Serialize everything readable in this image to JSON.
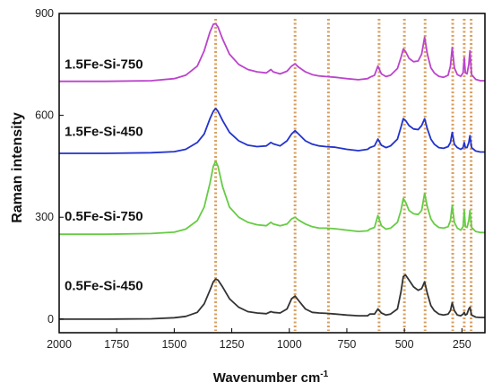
{
  "chart_data": {
    "type": "line",
    "xlabel": "Wavenumber cm",
    "xlabel_sup": "-1",
    "ylabel": "Raman intensity",
    "xlim": [
      2000,
      150
    ],
    "ylim": [
      -40,
      900
    ],
    "x_reversed": true,
    "x_ticks": [
      2000,
      1750,
      1500,
      1250,
      1000,
      750,
      500,
      250
    ],
    "y_ticks": [
      0,
      300,
      600,
      900
    ],
    "grid": false,
    "reference_lines": {
      "color": "#d9a060",
      "style": "dotted",
      "x": [
        1320,
        975,
        830,
        610,
        500,
        410,
        290,
        240,
        210
      ]
    },
    "series": [
      {
        "name": "0.5Fe-Si-450",
        "color": "#333333",
        "label_y": 85,
        "points": [
          [
            2000,
            0
          ],
          [
            1800,
            0
          ],
          [
            1600,
            1
          ],
          [
            1500,
            4
          ],
          [
            1450,
            8
          ],
          [
            1400,
            20
          ],
          [
            1370,
            45
          ],
          [
            1345,
            85
          ],
          [
            1330,
            110
          ],
          [
            1320,
            118
          ],
          [
            1310,
            115
          ],
          [
            1290,
            95
          ],
          [
            1260,
            60
          ],
          [
            1220,
            35
          ],
          [
            1180,
            22
          ],
          [
            1140,
            18
          ],
          [
            1100,
            16
          ],
          [
            1080,
            22
          ],
          [
            1070,
            20
          ],
          [
            1040,
            18
          ],
          [
            1010,
            30
          ],
          [
            990,
            60
          ],
          [
            975,
            68
          ],
          [
            960,
            55
          ],
          [
            930,
            30
          ],
          [
            900,
            20
          ],
          [
            870,
            18
          ],
          [
            840,
            17
          ],
          [
            800,
            15
          ],
          [
            750,
            12
          ],
          [
            700,
            10
          ],
          [
            660,
            10
          ],
          [
            650,
            15
          ],
          [
            630,
            15
          ],
          [
            615,
            30
          ],
          [
            600,
            18
          ],
          [
            580,
            12
          ],
          [
            560,
            15
          ],
          [
            530,
            30
          ],
          [
            515,
            80
          ],
          [
            505,
            125
          ],
          [
            495,
            130
          ],
          [
            480,
            115
          ],
          [
            460,
            95
          ],
          [
            440,
            85
          ],
          [
            425,
            90
          ],
          [
            412,
            110
          ],
          [
            400,
            75
          ],
          [
            385,
            40
          ],
          [
            370,
            25
          ],
          [
            350,
            15
          ],
          [
            330,
            12
          ],
          [
            310,
            15
          ],
          [
            300,
            25
          ],
          [
            292,
            48
          ],
          [
            283,
            25
          ],
          [
            270,
            12
          ],
          [
            255,
            10
          ],
          [
            245,
            15
          ],
          [
            240,
            20
          ],
          [
            235,
            12
          ],
          [
            228,
            15
          ],
          [
            220,
            30
          ],
          [
            215,
            35
          ],
          [
            208,
            12
          ],
          [
            190,
            6
          ],
          [
            170,
            5
          ],
          [
            150,
            5
          ]
        ]
      },
      {
        "name": "0.5Fe-Si-750",
        "color": "#66cc44",
        "label_y": 290,
        "points": [
          [
            2000,
            250
          ],
          [
            1800,
            250
          ],
          [
            1600,
            252
          ],
          [
            1500,
            256
          ],
          [
            1450,
            265
          ],
          [
            1400,
            290
          ],
          [
            1370,
            330
          ],
          [
            1345,
            400
          ],
          [
            1330,
            450
          ],
          [
            1320,
            465
          ],
          [
            1310,
            450
          ],
          [
            1290,
            390
          ],
          [
            1260,
            330
          ],
          [
            1220,
            300
          ],
          [
            1180,
            285
          ],
          [
            1140,
            278
          ],
          [
            1100,
            275
          ],
          [
            1080,
            285
          ],
          [
            1070,
            280
          ],
          [
            1040,
            275
          ],
          [
            1010,
            280
          ],
          [
            990,
            295
          ],
          [
            975,
            300
          ],
          [
            960,
            292
          ],
          [
            930,
            280
          ],
          [
            900,
            272
          ],
          [
            870,
            268
          ],
          [
            840,
            268
          ],
          [
            800,
            266
          ],
          [
            750,
            262
          ],
          [
            700,
            258
          ],
          [
            660,
            260
          ],
          [
            650,
            265
          ],
          [
            630,
            270
          ],
          [
            615,
            305
          ],
          [
            600,
            275
          ],
          [
            580,
            265
          ],
          [
            560,
            268
          ],
          [
            530,
            285
          ],
          [
            515,
            320
          ],
          [
            505,
            355
          ],
          [
            495,
            345
          ],
          [
            480,
            320
          ],
          [
            460,
            310
          ],
          [
            440,
            308
          ],
          [
            425,
            320
          ],
          [
            412,
            370
          ],
          [
            400,
            330
          ],
          [
            385,
            295
          ],
          [
            370,
            280
          ],
          [
            350,
            270
          ],
          [
            330,
            268
          ],
          [
            310,
            272
          ],
          [
            300,
            290
          ],
          [
            292,
            335
          ],
          [
            283,
            285
          ],
          [
            270,
            268
          ],
          [
            255,
            262
          ],
          [
            245,
            272
          ],
          [
            240,
            320
          ],
          [
            235,
            272
          ],
          [
            228,
            270
          ],
          [
            220,
            290
          ],
          [
            215,
            320
          ],
          [
            208,
            270
          ],
          [
            190,
            258
          ],
          [
            170,
            255
          ],
          [
            150,
            255
          ]
        ]
      },
      {
        "name": "1.5Fe-Si-450",
        "color": "#2233cc",
        "label_y": 540,
        "points": [
          [
            2000,
            488
          ],
          [
            1800,
            488
          ],
          [
            1600,
            490
          ],
          [
            1500,
            493
          ],
          [
            1450,
            500
          ],
          [
            1400,
            520
          ],
          [
            1370,
            545
          ],
          [
            1345,
            590
          ],
          [
            1330,
            612
          ],
          [
            1320,
            620
          ],
          [
            1310,
            612
          ],
          [
            1290,
            585
          ],
          [
            1260,
            550
          ],
          [
            1220,
            525
          ],
          [
            1180,
            512
          ],
          [
            1140,
            508
          ],
          [
            1100,
            510
          ],
          [
            1080,
            520
          ],
          [
            1070,
            516
          ],
          [
            1040,
            510
          ],
          [
            1010,
            525
          ],
          [
            990,
            545
          ],
          [
            975,
            555
          ],
          [
            960,
            545
          ],
          [
            930,
            525
          ],
          [
            900,
            515
          ],
          [
            870,
            510
          ],
          [
            840,
            508
          ],
          [
            800,
            506
          ],
          [
            750,
            500
          ],
          [
            700,
            496
          ],
          [
            660,
            500
          ],
          [
            650,
            505
          ],
          [
            630,
            510
          ],
          [
            615,
            530
          ],
          [
            600,
            512
          ],
          [
            580,
            505
          ],
          [
            560,
            510
          ],
          [
            530,
            530
          ],
          [
            515,
            565
          ],
          [
            505,
            590
          ],
          [
            495,
            585
          ],
          [
            480,
            570
          ],
          [
            460,
            560
          ],
          [
            440,
            558
          ],
          [
            425,
            570
          ],
          [
            412,
            590
          ],
          [
            400,
            560
          ],
          [
            385,
            530
          ],
          [
            370,
            515
          ],
          [
            350,
            505
          ],
          [
            330,
            503
          ],
          [
            310,
            508
          ],
          [
            300,
            520
          ],
          [
            292,
            550
          ],
          [
            283,
            515
          ],
          [
            270,
            505
          ],
          [
            255,
            500
          ],
          [
            245,
            505
          ],
          [
            240,
            520
          ],
          [
            235,
            505
          ],
          [
            228,
            505
          ],
          [
            220,
            520
          ],
          [
            215,
            540
          ],
          [
            208,
            505
          ],
          [
            190,
            495
          ],
          [
            170,
            492
          ],
          [
            150,
            492
          ]
        ]
      },
      {
        "name": "1.5Fe-Si-750",
        "color": "#bb44cc",
        "label_y": 738,
        "points": [
          [
            2000,
            700
          ],
          [
            1800,
            700
          ],
          [
            1600,
            702
          ],
          [
            1500,
            708
          ],
          [
            1450,
            718
          ],
          [
            1400,
            745
          ],
          [
            1370,
            790
          ],
          [
            1345,
            845
          ],
          [
            1330,
            868
          ],
          [
            1320,
            870
          ],
          [
            1310,
            860
          ],
          [
            1290,
            825
          ],
          [
            1260,
            780
          ],
          [
            1220,
            750
          ],
          [
            1180,
            735
          ],
          [
            1140,
            728
          ],
          [
            1100,
            725
          ],
          [
            1080,
            735
          ],
          [
            1070,
            728
          ],
          [
            1040,
            722
          ],
          [
            1010,
            730
          ],
          [
            990,
            745
          ],
          [
            975,
            752
          ],
          [
            960,
            742
          ],
          [
            930,
            728
          ],
          [
            900,
            720
          ],
          [
            870,
            716
          ],
          [
            840,
            714
          ],
          [
            800,
            712
          ],
          [
            750,
            708
          ],
          [
            700,
            705
          ],
          [
            660,
            708
          ],
          [
            650,
            712
          ],
          [
            630,
            718
          ],
          [
            615,
            745
          ],
          [
            600,
            722
          ],
          [
            580,
            714
          ],
          [
            560,
            718
          ],
          [
            530,
            738
          ],
          [
            515,
            770
          ],
          [
            505,
            795
          ],
          [
            495,
            788
          ],
          [
            480,
            768
          ],
          [
            460,
            758
          ],
          [
            440,
            760
          ],
          [
            425,
            780
          ],
          [
            412,
            830
          ],
          [
            400,
            780
          ],
          [
            385,
            740
          ],
          [
            370,
            725
          ],
          [
            350,
            715
          ],
          [
            330,
            712
          ],
          [
            310,
            718
          ],
          [
            300,
            745
          ],
          [
            292,
            800
          ],
          [
            283,
            740
          ],
          [
            270,
            720
          ],
          [
            255,
            715
          ],
          [
            245,
            725
          ],
          [
            240,
            770
          ],
          [
            235,
            725
          ],
          [
            228,
            722
          ],
          [
            220,
            750
          ],
          [
            215,
            790
          ],
          [
            208,
            720
          ],
          [
            190,
            706
          ],
          [
            170,
            702
          ],
          [
            150,
            702
          ]
        ]
      }
    ]
  }
}
